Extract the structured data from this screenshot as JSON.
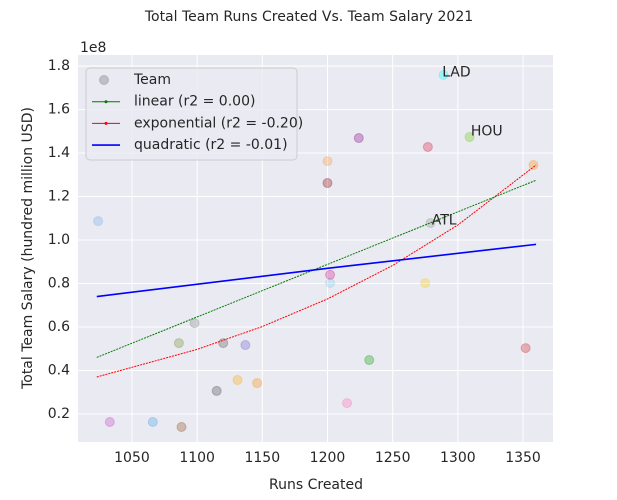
{
  "chart_data": {
    "type": "scatter",
    "title": "Total Team Runs Created Vs. Team Salary 2021",
    "x_label": "Runs Created",
    "y_label": "Total Team Salary (hundred million USD)",
    "y_offset_label": "1e8",
    "xlim": [
      1008.6,
      1373
    ],
    "ylim": [
      0.071,
      1.851
    ],
    "xticks": [
      1050,
      1100,
      1150,
      1200,
      1250,
      1300,
      1350
    ],
    "yticks": [
      0.2,
      0.4,
      0.6,
      0.8,
      {
        "value": 1,
        "label": "1.0"
      },
      1.2,
      1.4,
      1.6,
      1.8
    ],
    "grid": true,
    "legend": "upper left",
    "series": [
      {
        "name": "Team",
        "type": "scatter",
        "color": "#808080",
        "alpha": 0.3,
        "x": [
          1024,
          1033,
          1066,
          1088,
          1086,
          1098,
          1120,
          1115,
          1131,
          1137,
          1146,
          1200,
          1200,
          1202,
          1202,
          1215,
          1224,
          1232,
          1275,
          1277,
          1279,
          1289,
          1309,
          1352,
          1358
        ],
        "values": [
          1.087,
          0.163,
          0.163,
          0.14,
          0.526,
          0.618,
          0.526,
          0.306,
          0.356,
          0.517,
          0.342,
          1.363,
          1.262,
          0.802,
          0.84,
          0.25,
          1.469,
          0.448,
          0.802,
          1.428,
          1.078,
          1.759,
          1.474,
          0.503,
          1.345
        ],
        "colors": [
          "#6fa8f0",
          "#c040c0",
          "#40a0e0",
          "#8b4513",
          "#6b8e23",
          "#808080",
          "#505050",
          "#404040",
          "#ffa500",
          "#6a5acd",
          "#ff8c00",
          "#ff9933",
          "#8b0000",
          "#87ceeb",
          "#c71585",
          "#ff69b4",
          "#800080",
          "#00a000",
          "#ffcc00",
          "#dc143c",
          "#909090",
          "#00ffff",
          "#66cc00",
          "#cc2222",
          "#ff8c00"
        ]
      },
      {
        "name": "linear (r2 = 0.00)",
        "type": "line",
        "color": "#007a00",
        "marker": true,
        "x": [
          1023,
          1360
        ],
        "values": [
          0.46,
          1.275
        ]
      },
      {
        "name": "exponential (r2 = -0.20)",
        "type": "line",
        "color": "#ff0000",
        "marker": true,
        "x": [
          1023,
          1100,
          1150,
          1200,
          1250,
          1300,
          1360
        ],
        "values": [
          0.37,
          0.497,
          0.602,
          0.729,
          0.883,
          1.069,
          1.345
        ]
      },
      {
        "name": "quadratic (r2 = -0.01)",
        "type": "line",
        "color": "#0000ff",
        "marker": false,
        "x": [
          1023,
          1200,
          1360
        ],
        "values": [
          0.74,
          0.87,
          0.98
        ]
      }
    ],
    "annotations": [
      {
        "text": "LAD",
        "x": 1288,
        "y": 1.77
      },
      {
        "text": "HOU",
        "x": 1310,
        "y": 1.5
      },
      {
        "text": "ATL",
        "x": 1280,
        "y": 1.09
      }
    ]
  }
}
